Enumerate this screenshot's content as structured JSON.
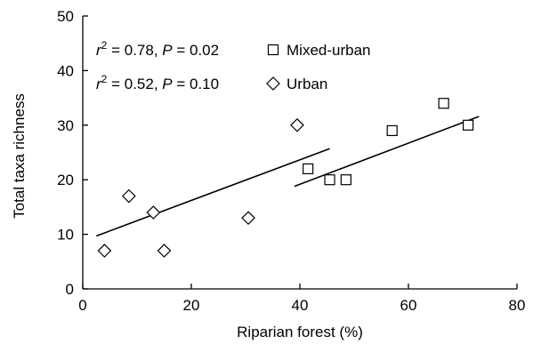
{
  "chart_data": {
    "type": "scatter",
    "xlabel": "Riparian forest (%)",
    "ylabel": "Total taxa richness",
    "xlim": [
      0,
      80
    ],
    "ylim": [
      0,
      50
    ],
    "xticks": [
      0,
      20,
      40,
      60,
      80
    ],
    "yticks": [
      0,
      10,
      20,
      30,
      40,
      50
    ],
    "grid": false,
    "legend_position": "top-left",
    "series": [
      {
        "name": "Mixed-urban",
        "marker": "square",
        "stat_r2": "0.78",
        "stat_p": "0.02",
        "points": [
          {
            "x": 41.5,
            "y": 22
          },
          {
            "x": 45.5,
            "y": 20
          },
          {
            "x": 48.5,
            "y": 20
          },
          {
            "x": 57,
            "y": 29
          },
          {
            "x": 66.5,
            "y": 34
          },
          {
            "x": 71,
            "y": 30
          }
        ],
        "trendline": {
          "x": [
            39,
            73
          ],
          "y": [
            18.8,
            31.6
          ]
        }
      },
      {
        "name": "Urban",
        "marker": "diamond",
        "stat_r2": "0.52",
        "stat_p": "0.10",
        "points": [
          {
            "x": 4,
            "y": 7
          },
          {
            "x": 8.5,
            "y": 17
          },
          {
            "x": 13,
            "y": 14
          },
          {
            "x": 15,
            "y": 7
          },
          {
            "x": 30.5,
            "y": 13
          },
          {
            "x": 39.5,
            "y": 30
          }
        ],
        "trendline": {
          "x": [
            2.5,
            45.5
          ],
          "y": [
            9.7,
            25.7
          ]
        }
      }
    ]
  }
}
